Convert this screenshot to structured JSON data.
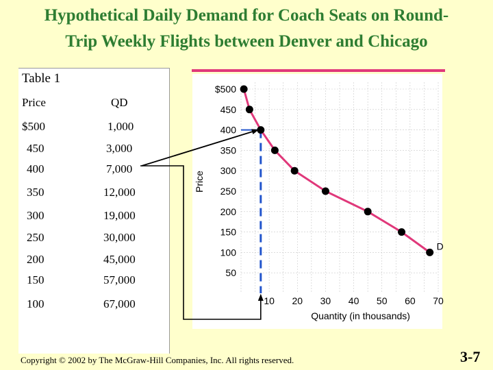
{
  "slide": {
    "title_line1": "Hypothetical Daily Demand for Coach Seats on Round-",
    "title_line2": "Trip Weekly Flights between Denver and Chicago",
    "copyright": "Copyright © 2002 by The McGraw-Hill Companies, Inc.  All rights reserved.",
    "slide_number": "3-7"
  },
  "table": {
    "caption": "Table 1",
    "headers": [
      "Price",
      "QD"
    ],
    "rows": [
      [
        "$500",
        "1,000"
      ],
      [
        "450",
        "3,000"
      ],
      [
        "400",
        "7,000"
      ],
      [
        "350",
        "12,000"
      ],
      [
        "300",
        "19,000"
      ],
      [
        "250",
        "30,000"
      ],
      [
        "200",
        "45,000"
      ],
      [
        "150",
        "57,000"
      ],
      [
        "100",
        "67,000"
      ]
    ]
  },
  "chart_data": {
    "type": "line",
    "title": "",
    "xlabel": "Quantity (in thousands)",
    "ylabel": "Price",
    "x_ticks": [
      "10",
      "20",
      "30",
      "40",
      "50",
      "60",
      "70"
    ],
    "y_ticks": [
      "$500",
      "450",
      "400",
      "350",
      "300",
      "250",
      "200",
      "150",
      "100",
      "50"
    ],
    "xlim": [
      0,
      70
    ],
    "ylim": [
      0,
      500
    ],
    "grid": true,
    "series": [
      {
        "name": "D",
        "x": [
          1,
          3,
          7,
          12,
          19,
          30,
          45,
          57,
          67
        ],
        "y": [
          500,
          450,
          400,
          350,
          300,
          250,
          200,
          150,
          100
        ]
      }
    ],
    "highlight_point": {
      "x": 7,
      "y": 400
    },
    "colors": {
      "curve": "#e0387a",
      "marker": "#000000",
      "guide": "#2255cc",
      "arrow": "#000000"
    }
  }
}
